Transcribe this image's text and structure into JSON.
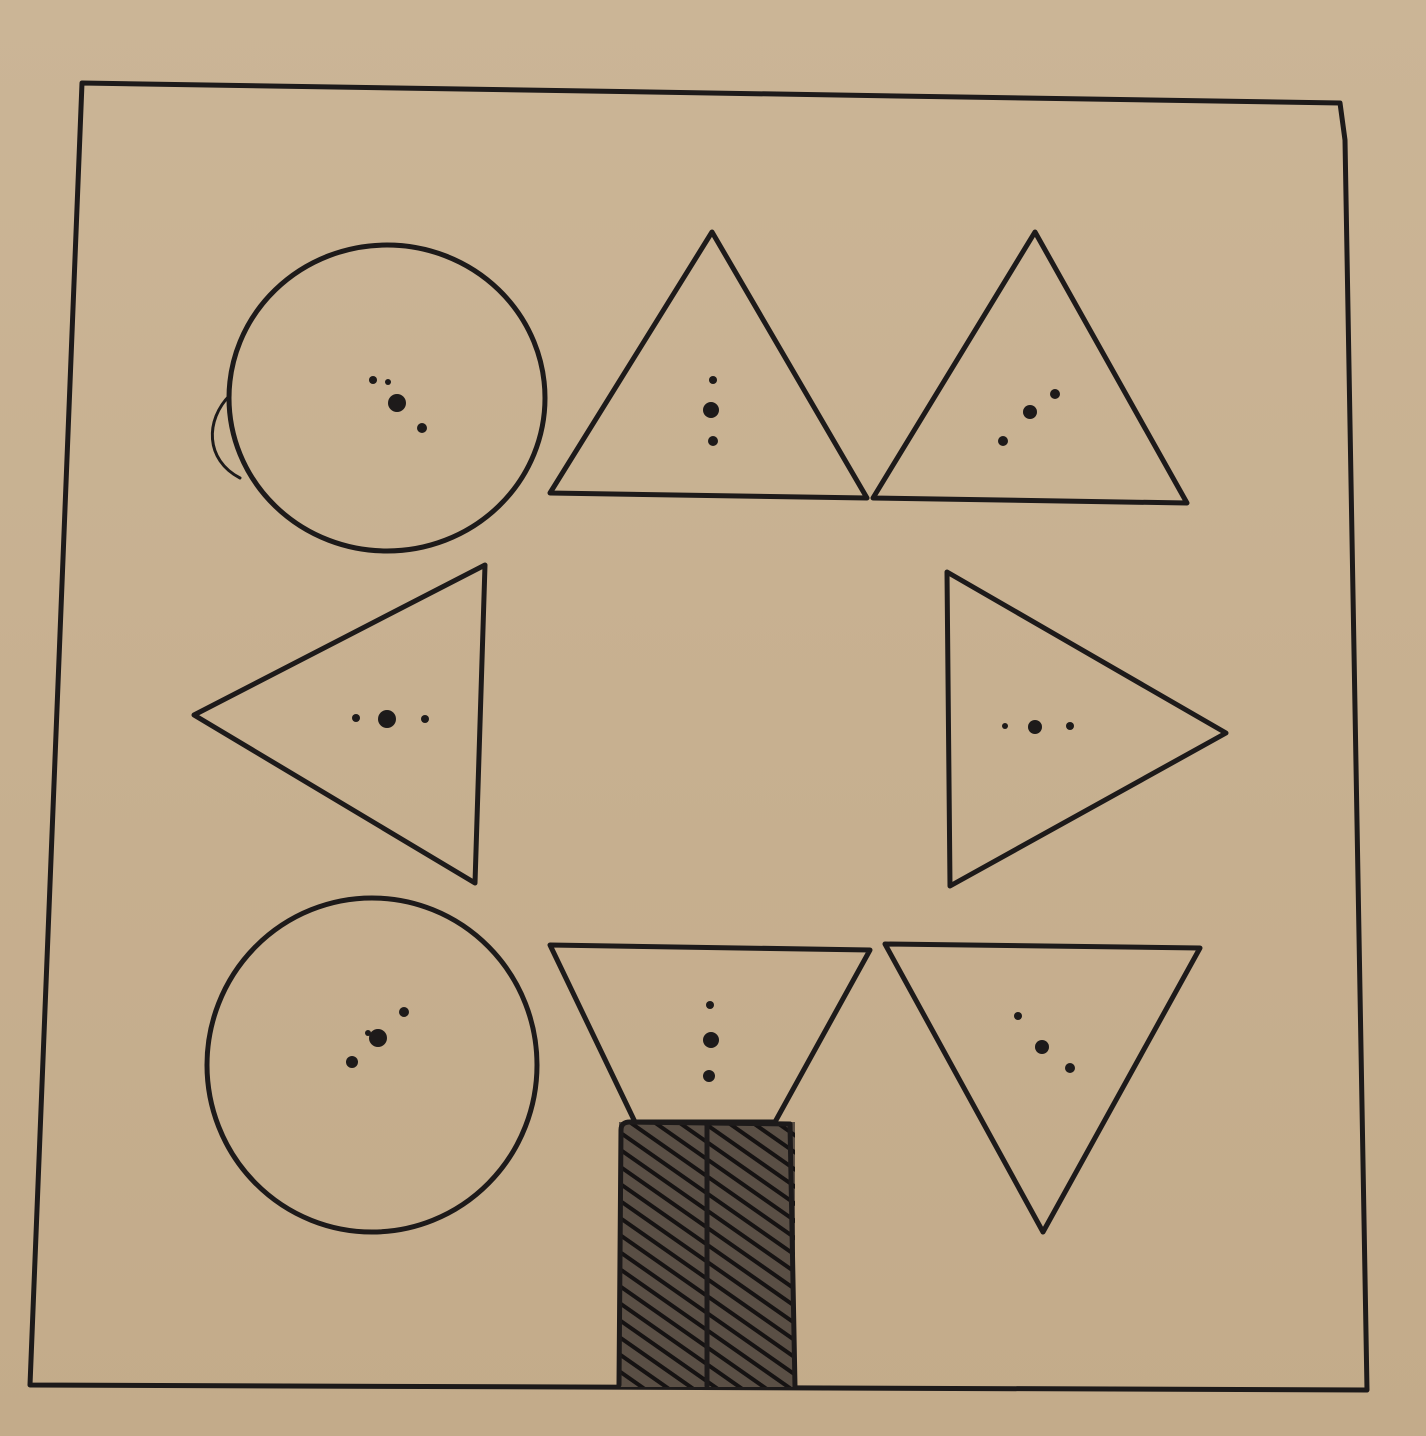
{
  "colors": {
    "paper": "#c9b394",
    "paper_shade": "#bfa887",
    "ink": "#1d1a1a"
  },
  "diagram": {
    "kind": "hand-drawn shape arrangement",
    "frame": {
      "shape": "square"
    },
    "shapes": [
      {
        "id": "circle-top-left",
        "type": "circle",
        "dots": 4
      },
      {
        "id": "triangle-up-middle",
        "type": "triangle",
        "pointing": "up",
        "dots": 3
      },
      {
        "id": "triangle-up-right",
        "type": "triangle",
        "pointing": "up",
        "dots": 3
      },
      {
        "id": "triangle-left",
        "type": "triangle",
        "pointing": "left",
        "dots": 3
      },
      {
        "id": "triangle-right",
        "type": "triangle",
        "pointing": "right",
        "dots": 3
      },
      {
        "id": "circle-bottom-left",
        "type": "circle",
        "dots": 4
      },
      {
        "id": "triangle-down-middle",
        "type": "triangle",
        "pointing": "down",
        "dots": 3
      },
      {
        "id": "triangle-down-right",
        "type": "triangle",
        "pointing": "down",
        "dots": 3
      },
      {
        "id": "shaded-rectangle",
        "type": "rectangle",
        "fill": "hatched",
        "divided": "vertically"
      }
    ]
  }
}
